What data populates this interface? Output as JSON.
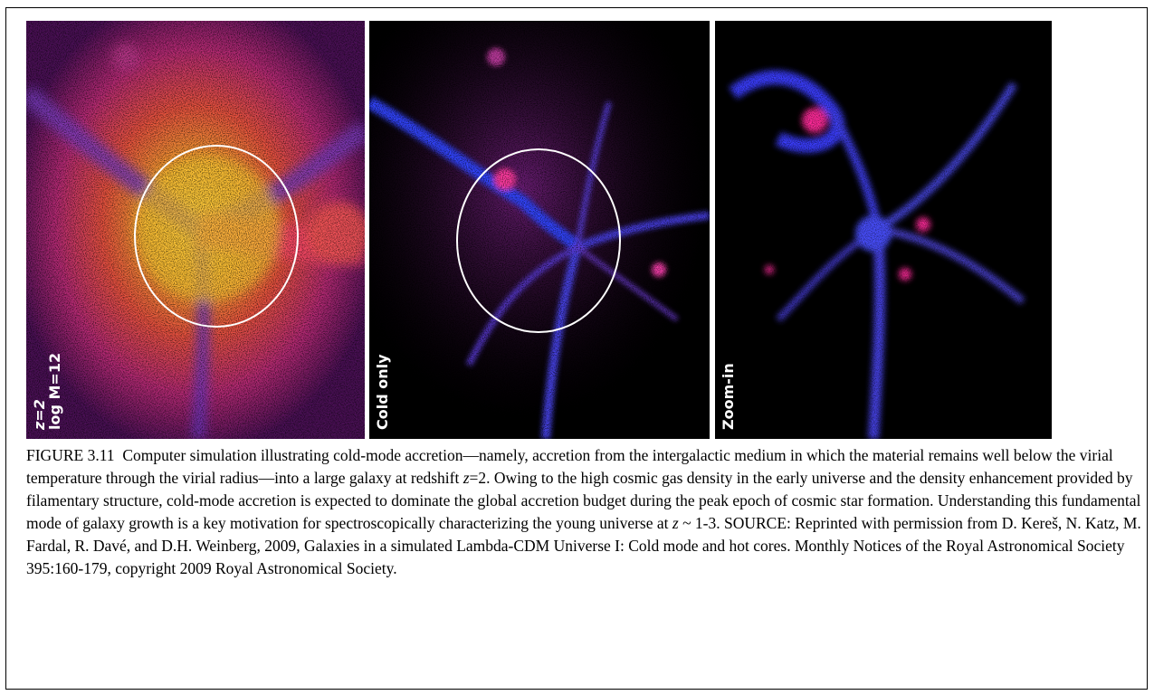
{
  "panels": [
    {
      "label_line1": "z=2",
      "label_line2": "log M=12"
    },
    {
      "label": "Cold only"
    },
    {
      "label": "Zoom-in"
    }
  ],
  "caption": {
    "figure_number": "FIGURE 3.11",
    "part1": "Computer simulation illustrating cold-mode accretion—namely, accretion from the intergalactic medium in which the material remains well below the virial temperature through the virial radius—into a large galaxy at redshift ",
    "z1": "z",
    "part2": "=2. Owing to the high cosmic gas density in the early universe and the density enhancement provided by filamentary structure, cold-mode accretion is expected to dominate the global accretion budget during the peak epoch of cosmic star formation. Understanding this fundamental mode of galaxy growth is a key motivation for spectroscopically characterizing the young universe at ",
    "z2": "z",
    "part3": " ~ 1-3. SOURCE: Reprinted with permission from D. Kereš, N. Katz, M. Fardal, R. Davé, and D.H. Weinberg, 2009, Galaxies in a simulated Lambda-CDM Universe I: Cold mode and hot cores. Monthly Notices of the Royal Astronomical Society 395:160-179, copyright 2009 Royal Astronomical Society."
  },
  "colors": {
    "hot_gas_core": "#ffcc33",
    "hot_gas_outer": "#ff3366",
    "cold_gas": "#3344ff",
    "dense_clump": "#ff2299",
    "circle": "#ffffff"
  }
}
